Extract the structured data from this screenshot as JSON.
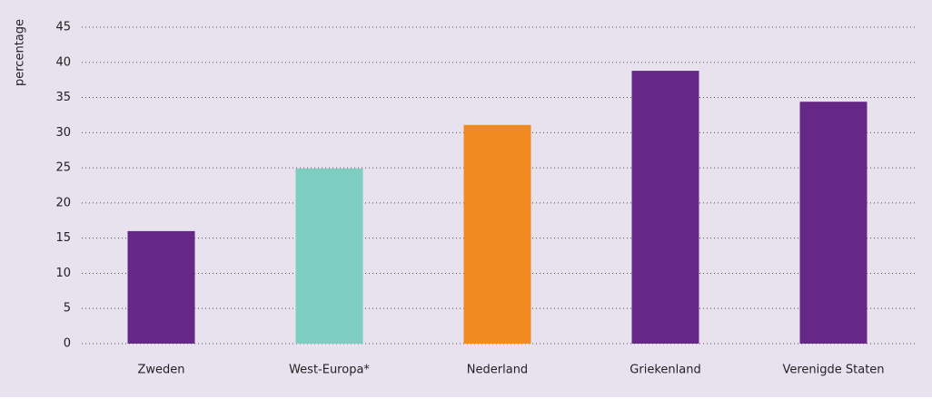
{
  "chart_data": {
    "type": "bar",
    "y_label": "percentage",
    "categories": [
      "Zweden",
      "West-Europa*",
      "Nederland",
      "Griekenland",
      "Verenigde Staten"
    ],
    "values": [
      16,
      24.9,
      31.1,
      38.8,
      34.4
    ],
    "colors": [
      "#662886",
      "#7dcdc0",
      "#f28a22",
      "#662886",
      "#662886"
    ],
    "ylim": [
      0,
      45
    ],
    "yticks": [
      0,
      5,
      10,
      15,
      20,
      25,
      30,
      35,
      40,
      45
    ],
    "grid": true
  }
}
